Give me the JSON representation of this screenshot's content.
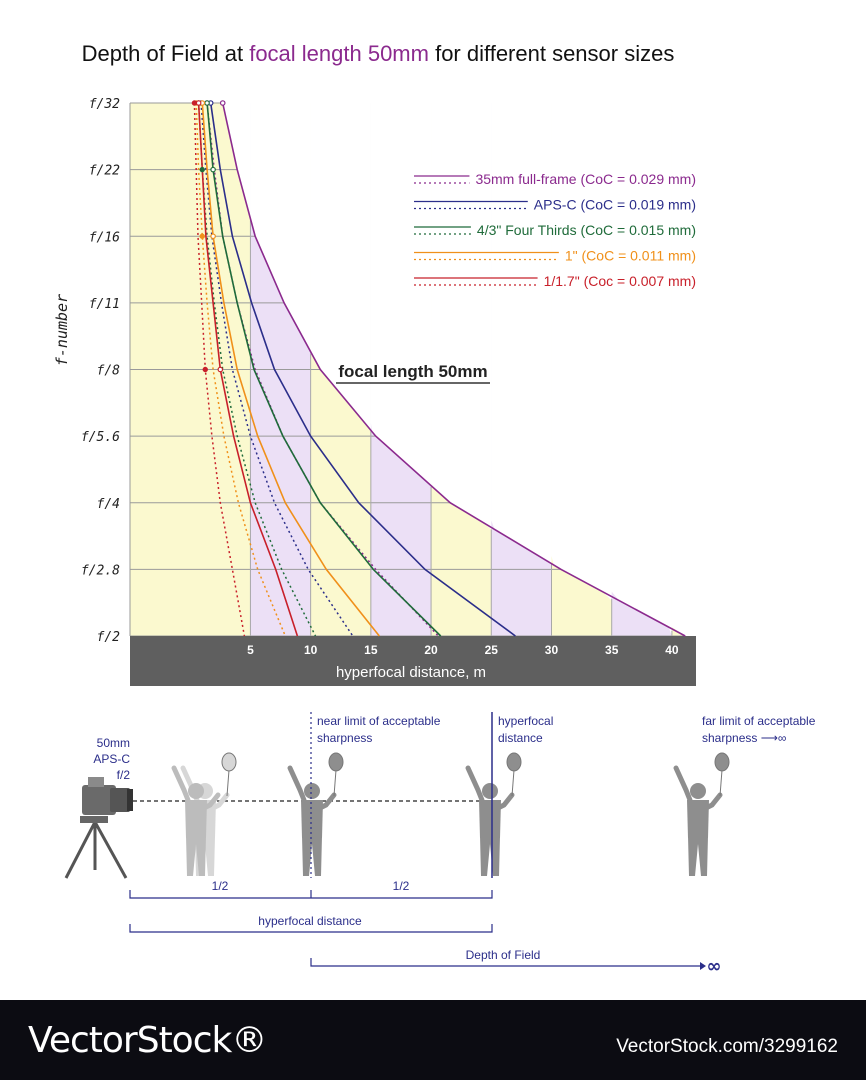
{
  "title": {
    "prefix": "Depth of Field at ",
    "highlight": "focal length 50mm",
    "suffix": " for different sensor sizes",
    "highlight_color": "#8b2a8e"
  },
  "chart_data": {
    "type": "line",
    "subtitle": "focal length 50mm",
    "xlabel": "hyperfocal distance, m",
    "ylabel": "f-number",
    "xlim": [
      -5,
      42
    ],
    "x_ticks": [
      5,
      10,
      15,
      20,
      25,
      30,
      35,
      40
    ],
    "y_categories": [
      "f/32",
      "f/22",
      "f/16",
      "f/11",
      "f/8",
      "f/5.6",
      "f/4",
      "f/2.8",
      "f/2"
    ],
    "legend_position": "top-right",
    "series": [
      {
        "name": "35mm full-frame (CoC = 0.029 mm)",
        "color": "#8b2a8e",
        "hyperfocal": [
          2.7,
          3.9,
          5.4,
          7.8,
          10.8,
          15.4,
          21.6,
          30.8,
          41.1
        ],
        "near_limit": [
          1.4,
          2.0,
          2.7,
          3.9,
          5.4,
          7.7,
          10.8,
          15.4,
          20.6
        ]
      },
      {
        "name": "APS-C (CoC = 0.019 mm)",
        "color": "#2b2e8a",
        "hyperfocal": [
          1.7,
          2.5,
          3.5,
          5.1,
          7.0,
          10.0,
          14.0,
          19.5,
          27.0
        ],
        "near_limit": [
          0.9,
          1.3,
          1.8,
          2.6,
          3.5,
          5.0,
          7.0,
          9.8,
          13.5
        ]
      },
      {
        "name": "4/3\" Four Thirds (CoC = 0.015 mm)",
        "color": "#1f6b3a",
        "hyperfocal": [
          1.4,
          1.9,
          2.7,
          3.9,
          5.3,
          7.7,
          10.8,
          15.2,
          20.8
        ],
        "near_limit": [
          0.7,
          1.0,
          1.4,
          2.0,
          2.7,
          3.9,
          5.4,
          7.6,
          10.4
        ]
      },
      {
        "name": "1\" (CoC = 0.011 mm)",
        "color": "#f0901a",
        "hyperfocal": [
          1.0,
          1.4,
          1.9,
          2.8,
          3.9,
          5.6,
          7.9,
          11.3,
          15.7
        ],
        "near_limit": [
          0.5,
          0.7,
          1.0,
          1.4,
          1.9,
          2.8,
          4.0,
          5.6,
          7.9
        ]
      },
      {
        "name": "1/1.7\" (Coc = 0.007 mm)",
        "color": "#c8202a",
        "hyperfocal": [
          0.7,
          1.0,
          1.3,
          1.9,
          2.5,
          3.6,
          5.0,
          7.1,
          8.9
        ],
        "near_limit": [
          0.35,
          0.5,
          0.65,
          0.95,
          1.25,
          1.8,
          2.5,
          3.5,
          4.5
        ]
      }
    ]
  },
  "illustration": {
    "camera_label_lines": [
      "50mm",
      "APS-C",
      "f/2"
    ],
    "near_limit_label": [
      "near limit of acceptable",
      "sharpness"
    ],
    "hyperfocal_label": [
      "hyperfocal",
      "distance"
    ],
    "far_limit_label": [
      "far limit of acceptable",
      "sharpness ⟶∞"
    ],
    "half_label": "1/2",
    "hyperfocal_distance_label": "hyperfocal distance",
    "dof_label": "Depth of Field",
    "infinity": "∞",
    "text_color": "#2b2e8a"
  },
  "footer": {
    "logo": "VectorStock®",
    "image_id": "VectorStock.com/3299162"
  }
}
